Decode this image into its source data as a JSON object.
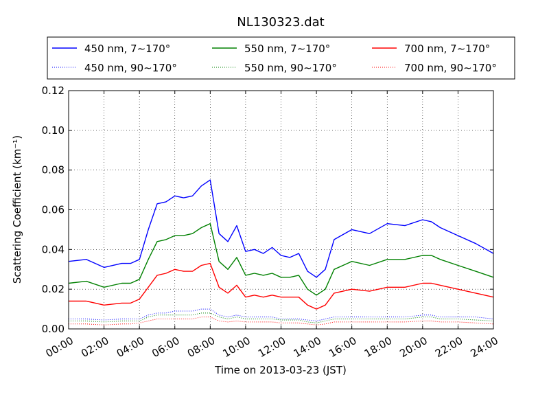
{
  "chart_data": {
    "type": "line",
    "title": "NL130323.dat",
    "xlabel": "Time on 2013-03-23 (JST)",
    "ylabel": "Scattering Coefficient (km⁻¹)",
    "xlim": [
      0,
      24
    ],
    "ylim": [
      0,
      0.12
    ],
    "x_tick_labels": [
      "00:00",
      "02:00",
      "04:00",
      "06:00",
      "08:00",
      "10:00",
      "12:00",
      "14:00",
      "16:00",
      "18:00",
      "20:00",
      "22:00",
      "24:00"
    ],
    "y_tick_labels": [
      "0.00",
      "0.02",
      "0.04",
      "0.06",
      "0.08",
      "0.10",
      "0.12"
    ],
    "grid": true,
    "legend_position": "top",
    "x": [
      0,
      1,
      2,
      3,
      3.5,
      4,
      4.5,
      5,
      5.5,
      6,
      6.5,
      7,
      7.5,
      8,
      8.5,
      9,
      9.5,
      10,
      10.5,
      11,
      11.5,
      12,
      12.5,
      13,
      13.5,
      14,
      14.5,
      15,
      16,
      17,
      18,
      19,
      20,
      20.5,
      21,
      22,
      23,
      24
    ],
    "series": [
      {
        "name": "450 nm, 7∼170°",
        "color": "#0000ff",
        "style": "solid",
        "values": [
          0.034,
          0.035,
          0.031,
          0.033,
          0.033,
          0.035,
          0.05,
          0.063,
          0.064,
          0.067,
          0.066,
          0.067,
          0.072,
          0.075,
          0.048,
          0.044,
          0.052,
          0.039,
          0.04,
          0.038,
          0.041,
          0.037,
          0.036,
          0.038,
          0.029,
          0.026,
          0.03,
          0.045,
          0.05,
          0.048,
          0.053,
          0.052,
          0.055,
          0.054,
          0.051,
          0.047,
          0.043,
          0.038
        ]
      },
      {
        "name": "550 nm, 7∼170°",
        "color": "#008000",
        "style": "solid",
        "values": [
          0.023,
          0.024,
          0.021,
          0.023,
          0.023,
          0.025,
          0.035,
          0.044,
          0.045,
          0.047,
          0.047,
          0.048,
          0.051,
          0.053,
          0.034,
          0.03,
          0.036,
          0.027,
          0.028,
          0.027,
          0.028,
          0.026,
          0.026,
          0.027,
          0.02,
          0.017,
          0.02,
          0.03,
          0.034,
          0.032,
          0.035,
          0.035,
          0.037,
          0.037,
          0.035,
          0.032,
          0.029,
          0.026
        ]
      },
      {
        "name": "700 nm, 7∼170°",
        "color": "#ff0000",
        "style": "solid",
        "values": [
          0.014,
          0.014,
          0.012,
          0.013,
          0.013,
          0.015,
          0.021,
          0.027,
          0.028,
          0.03,
          0.029,
          0.029,
          0.032,
          0.033,
          0.021,
          0.018,
          0.022,
          0.016,
          0.017,
          0.016,
          0.017,
          0.016,
          0.016,
          0.016,
          0.012,
          0.01,
          0.012,
          0.018,
          0.02,
          0.019,
          0.021,
          0.021,
          0.023,
          0.023,
          0.022,
          0.02,
          0.018,
          0.016
        ]
      },
      {
        "name": "450 nm, 90∼170°",
        "color": "#0000ff",
        "style": "dotted",
        "values": [
          0.005,
          0.005,
          0.0045,
          0.005,
          0.005,
          0.005,
          0.007,
          0.008,
          0.008,
          0.009,
          0.009,
          0.009,
          0.01,
          0.01,
          0.007,
          0.006,
          0.007,
          0.006,
          0.006,
          0.006,
          0.006,
          0.005,
          0.005,
          0.005,
          0.0045,
          0.004,
          0.005,
          0.006,
          0.006,
          0.006,
          0.006,
          0.006,
          0.007,
          0.007,
          0.006,
          0.006,
          0.006,
          0.005
        ]
      },
      {
        "name": "550 nm, 90∼170°",
        "color": "#008000",
        "style": "dotted",
        "values": [
          0.004,
          0.004,
          0.0035,
          0.004,
          0.004,
          0.004,
          0.006,
          0.007,
          0.007,
          0.007,
          0.007,
          0.007,
          0.008,
          0.008,
          0.006,
          0.005,
          0.006,
          0.005,
          0.005,
          0.005,
          0.005,
          0.0045,
          0.0045,
          0.0045,
          0.0035,
          0.003,
          0.004,
          0.005,
          0.005,
          0.005,
          0.005,
          0.005,
          0.006,
          0.006,
          0.005,
          0.005,
          0.0045,
          0.004
        ]
      },
      {
        "name": "700 nm, 90∼170°",
        "color": "#ff0000",
        "style": "dotted",
        "values": [
          0.0025,
          0.0025,
          0.002,
          0.0025,
          0.0025,
          0.003,
          0.004,
          0.005,
          0.005,
          0.005,
          0.005,
          0.005,
          0.006,
          0.006,
          0.004,
          0.0035,
          0.004,
          0.0035,
          0.0035,
          0.0035,
          0.0035,
          0.003,
          0.003,
          0.003,
          0.0025,
          0.002,
          0.0025,
          0.0035,
          0.0035,
          0.0035,
          0.0035,
          0.0035,
          0.004,
          0.004,
          0.0035,
          0.0035,
          0.003,
          0.0025
        ]
      }
    ]
  }
}
